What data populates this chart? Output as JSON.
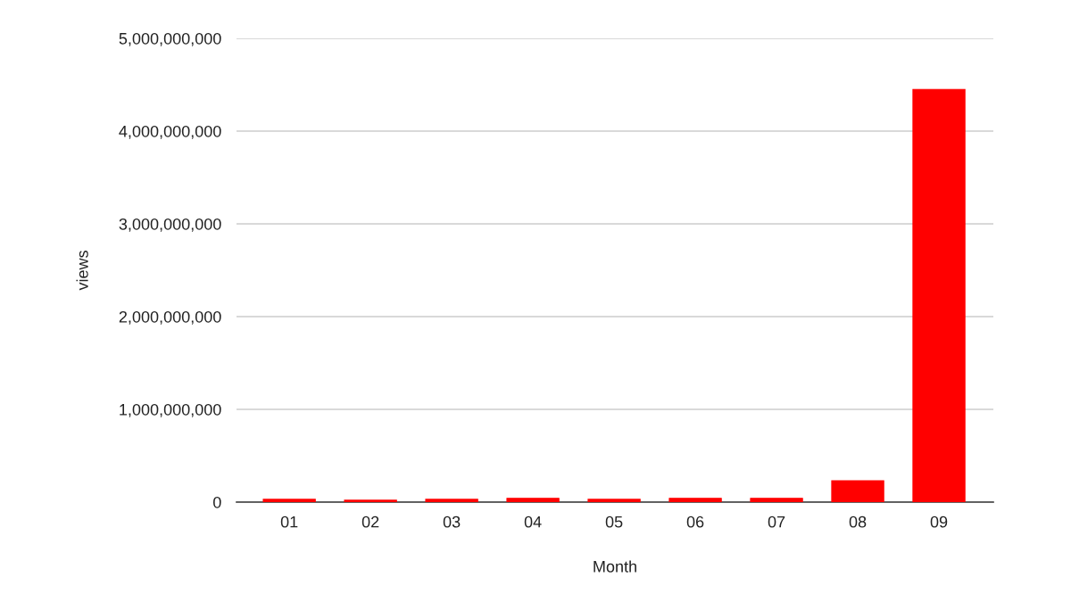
{
  "chart_data": {
    "type": "bar",
    "xlabel": "Month",
    "ylabel": "views",
    "categories": [
      "01",
      "02",
      "03",
      "04",
      "05",
      "06",
      "07",
      "08",
      "09"
    ],
    "values": [
      30000000,
      20000000,
      30000000,
      40000000,
      30000000,
      40000000,
      40000000,
      230000000,
      4450000000
    ],
    "color": "#ff0000",
    "ylim": [
      0,
      5000000000
    ],
    "yticks": [
      0,
      {
        "value": 1000000000,
        "label": "1,000,000,000"
      },
      {
        "value": 2000000000,
        "label": "2,000,000,000"
      },
      {
        "value": 3000000000,
        "label": "3,000,000,000"
      },
      {
        "value": 4000000000,
        "label": "4,000,000,000"
      },
      {
        "value": 5000000000,
        "label": "5,000,000,000"
      }
    ],
    "grid": "y"
  }
}
